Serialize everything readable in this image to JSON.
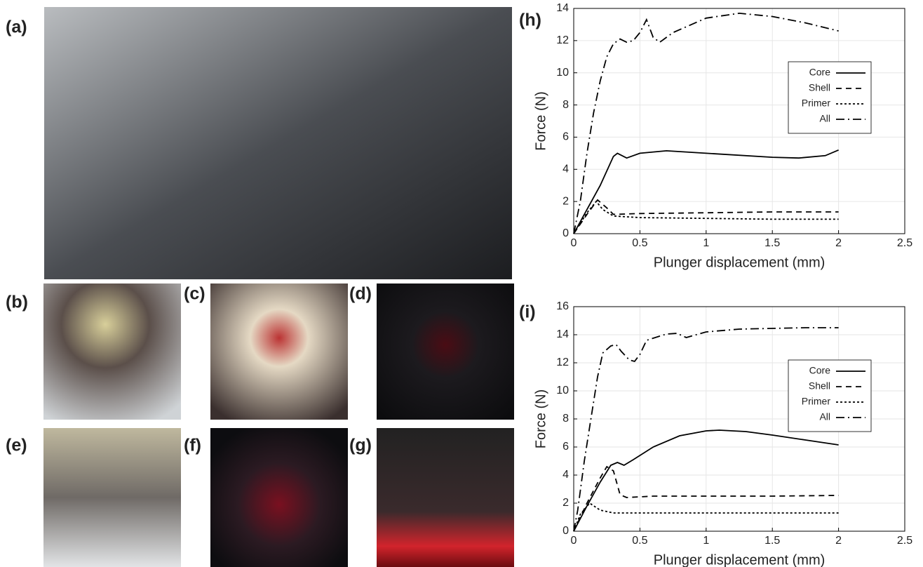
{
  "photo_panels": {
    "labels": [
      "(a)",
      "(b)",
      "(c)",
      "(d)",
      "(e)",
      "(f)",
      "(g)"
    ]
  },
  "chart_data": [
    {
      "type": "line",
      "panel_label": "(h)",
      "xlabel": "Plunger displacement (mm)",
      "ylabel": "Force (N)",
      "xlim": [
        0,
        2.5
      ],
      "xticks": [
        0,
        0.5,
        1,
        1.5,
        2,
        2.5
      ],
      "ylim": [
        0,
        14
      ],
      "yticks": [
        0,
        2,
        4,
        6,
        8,
        10,
        12,
        14
      ],
      "grid": true,
      "legend": "upper right",
      "series": [
        {
          "name": "Core",
          "color": "#000000",
          "style": "solid",
          "x": [
            0,
            0.1,
            0.2,
            0.3,
            0.33,
            0.4,
            0.5,
            0.7,
            1.0,
            1.5,
            1.7,
            1.9,
            2.0
          ],
          "values": [
            0,
            1.5,
            3,
            4.8,
            5.0,
            4.7,
            5.0,
            5.15,
            5.0,
            4.75,
            4.7,
            4.85,
            5.2
          ]
        },
        {
          "name": "Shell",
          "color": "#000000",
          "style": "dashed",
          "x": [
            0,
            0.1,
            0.18,
            0.25,
            0.3,
            0.5,
            1,
            1.5,
            2
          ],
          "values": [
            0,
            1.2,
            2.1,
            1.6,
            1.2,
            1.25,
            1.3,
            1.35,
            1.35
          ]
        },
        {
          "name": "Primer",
          "color": "#000000",
          "style": "dotted",
          "x": [
            0,
            0.1,
            0.17,
            0.22,
            0.3,
            0.5,
            1,
            1.5,
            2
          ],
          "values": [
            0,
            1.3,
            2.0,
            1.5,
            1.1,
            1.0,
            0.95,
            0.9,
            0.9
          ]
        },
        {
          "name": "All",
          "color": "#000000",
          "style": "dashdot",
          "x": [
            0,
            0.05,
            0.1,
            0.15,
            0.2,
            0.25,
            0.3,
            0.35,
            0.4,
            0.45,
            0.5,
            0.55,
            0.6,
            0.65,
            0.75,
            1,
            1.25,
            1.5,
            1.75,
            2
          ],
          "values": [
            0,
            2,
            5,
            7.5,
            9.5,
            11,
            11.8,
            12.1,
            11.9,
            12,
            12.5,
            13.3,
            12.2,
            11.9,
            12.5,
            13.4,
            13.7,
            13.5,
            13.1,
            12.6
          ]
        }
      ]
    },
    {
      "type": "line",
      "panel_label": "(i)",
      "xlabel": "Plunger displacement (mm)",
      "ylabel": "Force (N)",
      "xlim": [
        0,
        2.5
      ],
      "xticks": [
        0,
        0.5,
        1,
        1.5,
        2,
        2.5
      ],
      "ylim": [
        0,
        16
      ],
      "yticks": [
        0,
        2,
        4,
        6,
        8,
        10,
        12,
        14,
        16
      ],
      "grid": true,
      "legend": "upper right",
      "series": [
        {
          "name": "Core",
          "color": "#000000",
          "style": "solid",
          "x": [
            0,
            0.1,
            0.2,
            0.28,
            0.33,
            0.38,
            0.45,
            0.6,
            0.8,
            1.0,
            1.1,
            1.3,
            1.5,
            1.75,
            2
          ],
          "values": [
            0,
            1.8,
            3.5,
            4.7,
            4.9,
            4.7,
            5.1,
            6.0,
            6.8,
            7.15,
            7.2,
            7.1,
            6.85,
            6.5,
            6.15
          ]
        },
        {
          "name": "Shell",
          "color": "#000000",
          "style": "dashed",
          "x": [
            0,
            0.1,
            0.2,
            0.25,
            0.3,
            0.35,
            0.4,
            0.6,
            1,
            1.5,
            2
          ],
          "values": [
            0,
            2,
            3.8,
            4.6,
            4.3,
            2.6,
            2.4,
            2.5,
            2.5,
            2.5,
            2.55
          ]
        },
        {
          "name": "Primer",
          "color": "#000000",
          "style": "dotted",
          "x": [
            0,
            0.05,
            0.12,
            0.2,
            0.3,
            0.5,
            1,
            1.5,
            2
          ],
          "values": [
            0,
            1.2,
            2.0,
            1.5,
            1.3,
            1.3,
            1.3,
            1.3,
            1.3
          ]
        },
        {
          "name": "All",
          "color": "#000000",
          "style": "dashdot",
          "x": [
            0,
            0.03,
            0.08,
            0.13,
            0.18,
            0.22,
            0.28,
            0.32,
            0.36,
            0.42,
            0.46,
            0.5,
            0.55,
            0.7,
            0.78,
            0.85,
            1,
            1.25,
            1.5,
            1.75,
            2
          ],
          "values": [
            0,
            1.5,
            5,
            8,
            11,
            12.7,
            13.2,
            13.3,
            12.8,
            12.2,
            12.1,
            12.6,
            13.6,
            14.05,
            14.1,
            13.8,
            14.2,
            14.4,
            14.45,
            14.5,
            14.5
          ]
        }
      ]
    }
  ]
}
